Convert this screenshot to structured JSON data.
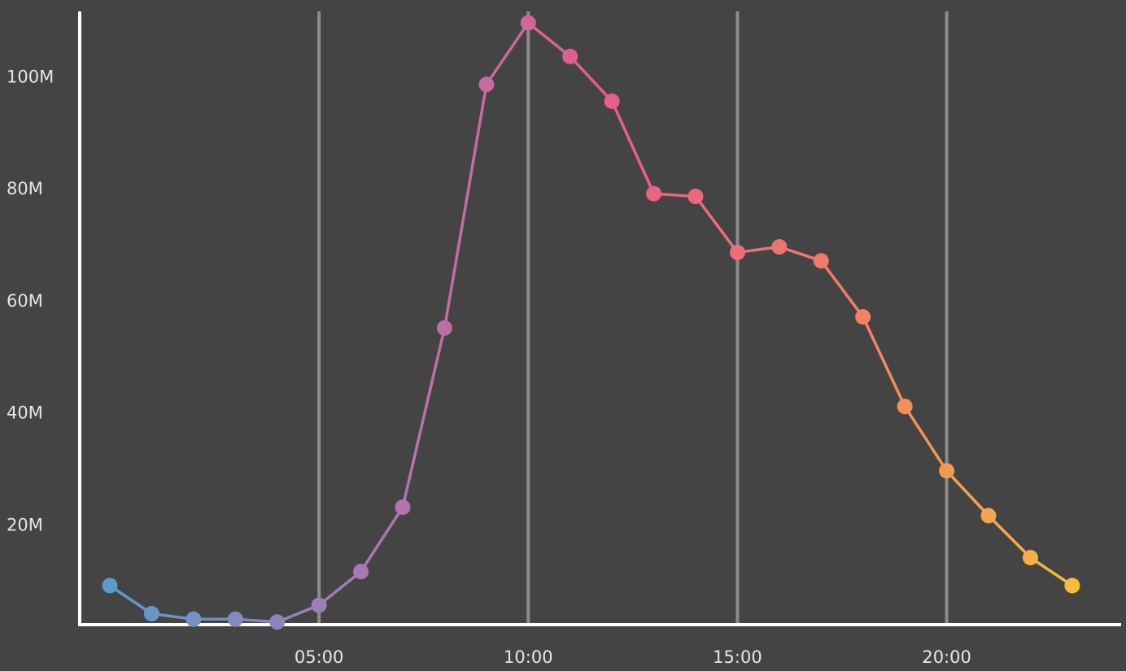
{
  "chart_data": {
    "type": "line",
    "title": "",
    "xlabel": "",
    "ylabel": "",
    "x_tick_labels": [
      "05:00",
      "10:00",
      "15:00",
      "20:00"
    ],
    "y_tick_labels": [
      "20M",
      "40M",
      "60M",
      "80M",
      "100M"
    ],
    "ylim": [
      0,
      110000000
    ],
    "grid": "vertical lines at x tick marks",
    "series": [
      {
        "x": [
          "00:00",
          "01:00",
          "02:00",
          "03:00",
          "04:00",
          "05:00",
          "06:00",
          "07:00",
          "08:00",
          "09:00",
          "10:00",
          "11:00",
          "12:00",
          "13:00",
          "14:00",
          "15:00",
          "16:00",
          "17:00",
          "18:00",
          "19:00",
          "20:00",
          "21:00",
          "22:00",
          "23:00"
        ],
        "values": [
          9000000,
          4000000,
          3000000,
          3000000,
          2500000,
          5500000,
          11500000,
          23000000,
          55000000,
          98500000,
          109500000,
          103500000,
          95500000,
          79000000,
          78500000,
          68500000,
          69500000,
          67000000,
          57000000,
          41000000,
          29500000,
          21500000,
          14000000,
          9000000
        ],
        "gradient_colors": [
          "#5b9cc8",
          "#a57ab5",
          "#e45d8c",
          "#f17a6a",
          "#f5bd3c"
        ]
      }
    ],
    "colors": {
      "background": "#444444",
      "axis": "#ffffff",
      "grid": "#8c8c8c",
      "label": "#e6e6e6"
    }
  }
}
